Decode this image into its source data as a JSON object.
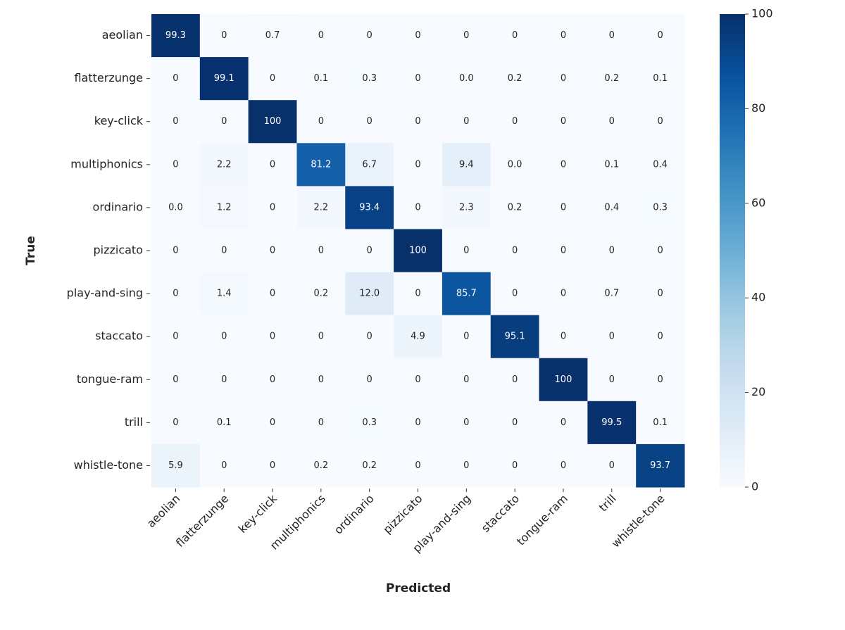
{
  "chart_data": {
    "type": "heatmap",
    "x_label": "Predicted",
    "y_label": "True",
    "x_categories": [
      "aeolian",
      "flatterzunge",
      "key-click",
      "multiphonics",
      "ordinario",
      "pizzicato",
      "play-and-sing",
      "staccato",
      "tongue-ram",
      "trill",
      "whistle-tone"
    ],
    "y_categories": [
      "aeolian",
      "flatterzunge",
      "key-click",
      "multiphonics",
      "ordinario",
      "pizzicato",
      "play-and-sing",
      "staccato",
      "tongue-ram",
      "trill",
      "whistle-tone"
    ],
    "values": [
      [
        99.3,
        0,
        0.7,
        0,
        0,
        0,
        0,
        0,
        0,
        0,
        0
      ],
      [
        0,
        99.1,
        0,
        0.1,
        0.3,
        0,
        0,
        0.2,
        0,
        0.2,
        0.1
      ],
      [
        0,
        0,
        100,
        0,
        0,
        0,
        0,
        0,
        0,
        0,
        0
      ],
      [
        0,
        2.2,
        0,
        81.2,
        6.7,
        0,
        9.4,
        0,
        0,
        0.1,
        0.4
      ],
      [
        0,
        1.2,
        0,
        2.2,
        93.4,
        0,
        2.3,
        0.2,
        0,
        0.4,
        0.3
      ],
      [
        0,
        0,
        0,
        0,
        0,
        100,
        0,
        0,
        0,
        0,
        0
      ],
      [
        0,
        1.4,
        0,
        0.2,
        12.0,
        0,
        85.7,
        0,
        0,
        0.7,
        0
      ],
      [
        0,
        0,
        0,
        0,
        0,
        4.9,
        0,
        95.1,
        0,
        0,
        0
      ],
      [
        0,
        0,
        0,
        0,
        0,
        0,
        0,
        0,
        100,
        0,
        0
      ],
      [
        0,
        0.1,
        0,
        0,
        0.3,
        0,
        0,
        0,
        0,
        99.5,
        0.1
      ],
      [
        5.9,
        0,
        0,
        0.2,
        0.2,
        0,
        0,
        0,
        0,
        0,
        93.7
      ]
    ],
    "value_labels": [
      [
        "99.3",
        "0",
        "0.7",
        "0",
        "0",
        "0",
        "0",
        "0",
        "0",
        "0",
        "0"
      ],
      [
        "0",
        "99.1",
        "0",
        "0.1",
        "0.3",
        "0",
        "0.0",
        "0.2",
        "0",
        "0.2",
        "0.1"
      ],
      [
        "0",
        "0",
        "100",
        "0",
        "0",
        "0",
        "0",
        "0",
        "0",
        "0",
        "0"
      ],
      [
        "0",
        "2.2",
        "0",
        "81.2",
        "6.7",
        "0",
        "9.4",
        "0.0",
        "0",
        "0.1",
        "0.4"
      ],
      [
        "0.0",
        "1.2",
        "0",
        "2.2",
        "93.4",
        "0",
        "2.3",
        "0.2",
        "0",
        "0.4",
        "0.3"
      ],
      [
        "0",
        "0",
        "0",
        "0",
        "0",
        "100",
        "0",
        "0",
        "0",
        "0",
        "0"
      ],
      [
        "0",
        "1.4",
        "0",
        "0.2",
        "12.0",
        "0",
        "85.7",
        "0",
        "0",
        "0.7",
        "0"
      ],
      [
        "0",
        "0",
        "0",
        "0",
        "0",
        "4.9",
        "0",
        "95.1",
        "0",
        "0",
        "0"
      ],
      [
        "0",
        "0",
        "0",
        "0",
        "0",
        "0",
        "0",
        "0",
        "100",
        "0",
        "0"
      ],
      [
        "0",
        "0.1",
        "0",
        "0",
        "0.3",
        "0",
        "0",
        "0",
        "0",
        "99.5",
        "0.1"
      ],
      [
        "5.9",
        "0",
        "0",
        "0.2",
        "0.2",
        "0",
        "0",
        "0",
        "0",
        "0",
        "93.7"
      ]
    ],
    "zlim": [
      0,
      100
    ],
    "zticks": [
      0,
      20,
      40,
      60,
      80,
      100
    ],
    "colormap": [
      "#f7fbff",
      "#deebf7",
      "#c6dbef",
      "#9ecae1",
      "#6baed6",
      "#4292c6",
      "#2171b5",
      "#08519c",
      "#08306b"
    ]
  }
}
